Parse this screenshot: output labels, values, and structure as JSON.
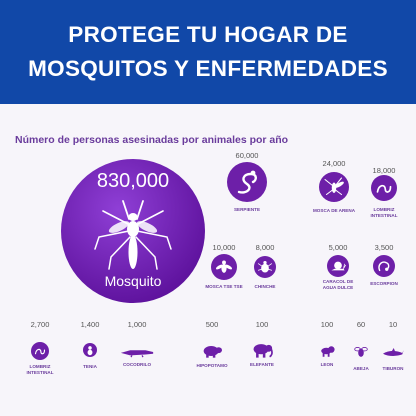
{
  "header": {
    "title_line1": "PROTEGE TU HOGAR DE",
    "title_line2": "MOSQUITOS Y ENFERMEDADES"
  },
  "subtitle": "Número de personas asesinadas por animales por año",
  "featured": {
    "count": "830,000",
    "label": "Mosquito",
    "icon": "mosquito-icon"
  },
  "animals": [
    {
      "count": "60,000",
      "label": "SERPIENTE",
      "icon": "snake-icon"
    },
    {
      "count": "24,000",
      "label": "MOSCA DE ARENA",
      "icon": "sandfly-icon"
    },
    {
      "count": "18,000",
      "label": "LOMBRIZ INTESTINAL",
      "icon": "worm-icon"
    },
    {
      "count": "10,000",
      "label": "MOSCA TSE TSE",
      "icon": "tsetse-fly-icon"
    },
    {
      "count": "8,000",
      "label": "CHINCHE",
      "icon": "bedbug-icon"
    },
    {
      "count": "5,000",
      "label": "CARACOL DE AGUA DULCE",
      "icon": "snail-icon"
    },
    {
      "count": "3,500",
      "label": "ESCORPION",
      "icon": "scorpion-icon"
    },
    {
      "count": "2,700",
      "label": "LOMBRIZ INTESTINAL",
      "icon": "worm-icon"
    },
    {
      "count": "1,400",
      "label": "TENIA",
      "icon": "tapeworm-icon"
    },
    {
      "count": "1,000",
      "label": "COCODRILO",
      "icon": "crocodile-icon"
    },
    {
      "count": "500",
      "label": "HIPOPOTAMO",
      "icon": "hippo-icon"
    },
    {
      "count": "100",
      "label": "ELEFANTE",
      "icon": "elephant-icon"
    },
    {
      "count": "100",
      "label": "LEON",
      "icon": "lion-icon"
    },
    {
      "count": "60",
      "label": "ABEJA",
      "icon": "bee-icon"
    },
    {
      "count": "10",
      "label": "TIBURON",
      "icon": "shark-icon"
    }
  ],
  "colors": {
    "banner": "#1148a8",
    "accent": "#6d1fa8",
    "label": "#6a3c9c"
  }
}
